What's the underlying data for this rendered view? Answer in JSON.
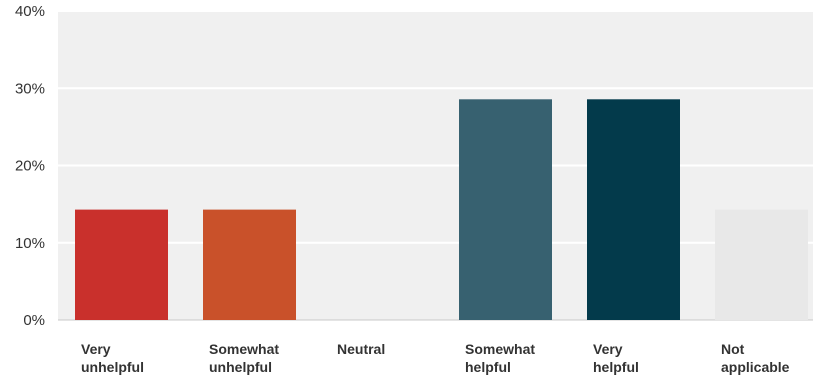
{
  "chart_data": {
    "type": "bar",
    "categories": [
      [
        "Very",
        "unhelpful"
      ],
      [
        "Somewhat",
        "unhelpful"
      ],
      [
        "Neutral"
      ],
      [
        "Somewhat",
        "helpful"
      ],
      [
        "Very",
        "helpful"
      ],
      [
        "Not",
        "applicable"
      ]
    ],
    "values": [
      14.29,
      14.29,
      0,
      28.57,
      28.57,
      14.29
    ],
    "colors": [
      "#c9302c",
      "#c9512a",
      "#d4d4d4",
      "#376170",
      "#033a4b",
      "#e8e8e8"
    ],
    "y_ticks": [
      "0%",
      "10%",
      "20%",
      "30%",
      "40%"
    ],
    "ylim": [
      0,
      40
    ],
    "grid": true,
    "background": "#f0f0f0"
  }
}
